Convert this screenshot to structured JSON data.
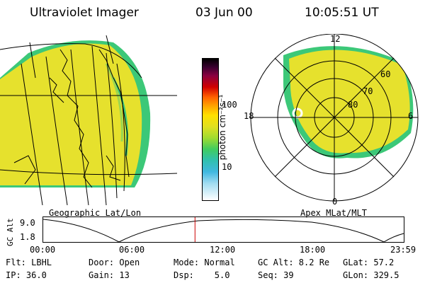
{
  "header": {
    "title": "Ultraviolet Imager",
    "date": "03 Jun 00",
    "time": "10:05:51 UT"
  },
  "colorbar": {
    "unit_label": "photon cm⁻²s⁻¹",
    "ticks": [
      "100",
      "10"
    ]
  },
  "panels": {
    "left_label": "Geographic Lat/Lon",
    "right_label": "Apex MLat/MLT"
  },
  "polar": {
    "mlt_labels": [
      "12",
      "18",
      "6",
      "0"
    ],
    "lat_labels": [
      "60",
      "70",
      "80"
    ]
  },
  "timeline": {
    "ylabel": "GC Alt",
    "y_ticks": [
      "9.0",
      "1.8"
    ],
    "x_ticks": [
      "00:00",
      "06:00",
      "12:00",
      "18:00",
      "23:59"
    ],
    "marker_time": "10:05:51"
  },
  "info": {
    "row1": [
      "Flt: LBHL",
      "Door: Open",
      "Mode: Normal",
      "GC Alt: 8.2 Re",
      "GLat: 57.2"
    ],
    "row2": [
      "IP: 36.0",
      "Gain: 13",
      "Dsp:    5.0",
      "Seq: 39",
      "GLon: 329.5"
    ]
  },
  "colors": {
    "aurora_fill": "#e6e12d",
    "aurora_edge": "#3cc878",
    "marker": "#cc0000"
  }
}
